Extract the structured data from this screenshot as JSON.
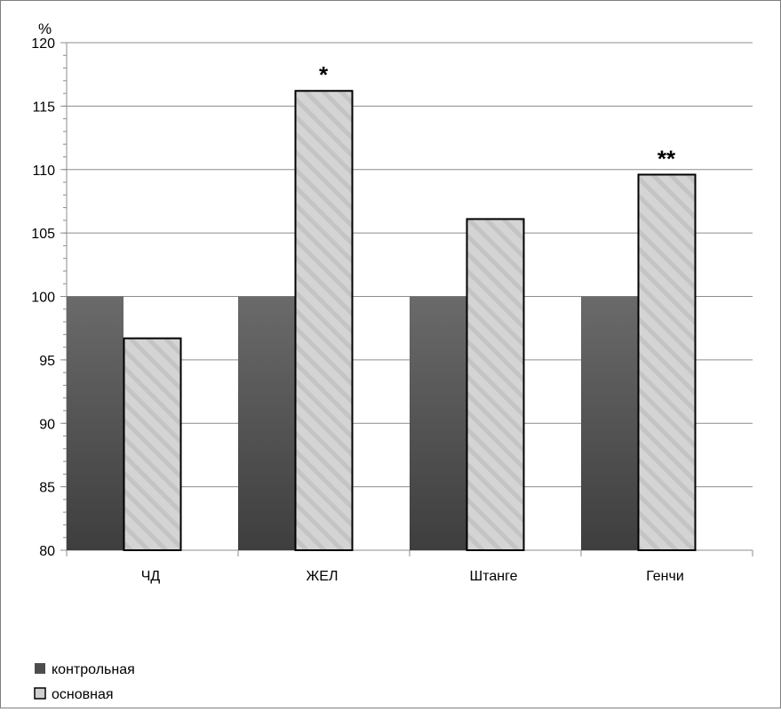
{
  "chart_data": {
    "type": "bar",
    "title": "",
    "xlabel": "",
    "ylabel": "%",
    "ylim": [
      80,
      120
    ],
    "y_ticks": [
      80,
      85,
      90,
      95,
      100,
      105,
      110,
      115,
      120
    ],
    "grid": true,
    "legend_position": "bottom-left",
    "categories": [
      "ЧД",
      "ЖЕЛ",
      "Штанге",
      "Генчи"
    ],
    "series": [
      {
        "name": "контрольная",
        "values": [
          100,
          100,
          100,
          100
        ],
        "color": "#4d4d4d",
        "fill": "solid-gradient"
      },
      {
        "name": "основная",
        "values": [
          96.7,
          116.2,
          106.1,
          109.6
        ],
        "color": "#d2d2d2",
        "fill": "diagonal-hatch"
      }
    ],
    "annotations": [
      {
        "category": "ЖЕЛ",
        "series": "основная",
        "text": "*"
      },
      {
        "category": "Генчи",
        "series": "основная",
        "text": "**"
      }
    ]
  }
}
